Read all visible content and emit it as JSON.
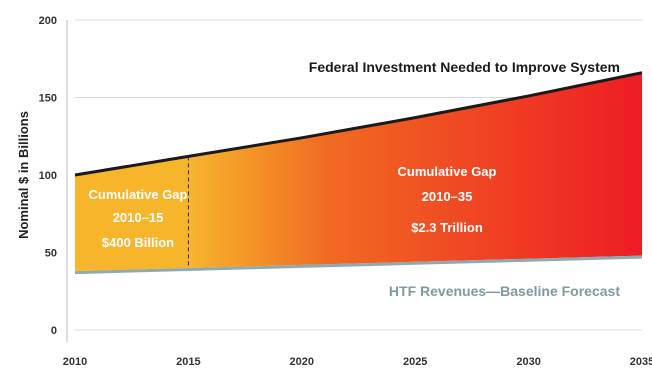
{
  "chart_data": {
    "type": "area",
    "ylabel": "Nominal $ in Billions",
    "xlabel": "",
    "ylim": [
      0,
      200
    ],
    "xlim": [
      2010,
      2035
    ],
    "y_ticks": [
      "0",
      "50",
      "100",
      "150",
      "200"
    ],
    "x_ticks": [
      "2010",
      "2015",
      "2020",
      "2025",
      "2030",
      "2035"
    ],
    "grid": "horizontal",
    "series": [
      {
        "name": "Federal Investment Needed to Improve System",
        "x": [
          2010,
          2015,
          2020,
          2025,
          2030,
          2035
        ],
        "values": [
          100,
          112,
          124,
          137,
          151,
          166
        ]
      },
      {
        "name": "HTF Revenues—Baseline Forecast",
        "x": [
          2010,
          2015,
          2020,
          2025,
          2030,
          2035
        ],
        "values": [
          38,
          40,
          42,
          44,
          46,
          48
        ]
      }
    ],
    "gaps": [
      {
        "lines": [
          "Cumulative Gap",
          "2010–15",
          "$400 Billion"
        ],
        "from": 2010,
        "to": 2015
      },
      {
        "lines": [
          "Cumulative Gap",
          "2010–35",
          "$2.3 Trillion"
        ],
        "from": 2010,
        "to": 2035
      }
    ],
    "colors": {
      "gap_start": "#f7b52c",
      "gap_mid": "#f06a22",
      "gap_end": "#ee1c24",
      "htf_band": "#8fa9b0",
      "line": "#1a1a1a",
      "grid": "#d9d9d9"
    }
  }
}
